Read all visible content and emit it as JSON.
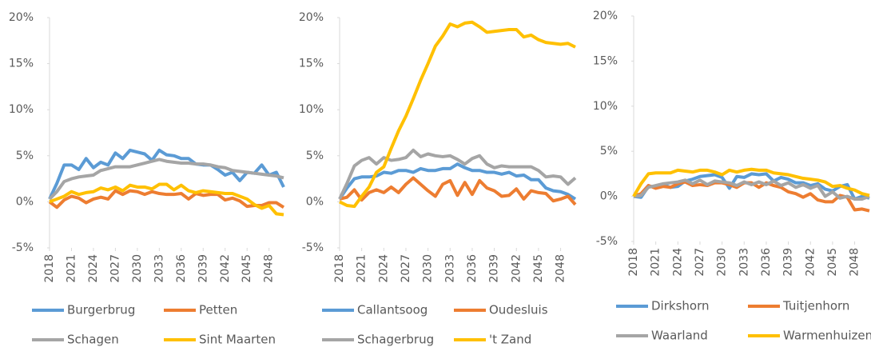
{
  "chart_data": [
    {
      "type": "line",
      "x": [
        2018,
        2019,
        2020,
        2021,
        2022,
        2023,
        2024,
        2025,
        2026,
        2027,
        2028,
        2029,
        2030,
        2031,
        2032,
        2033,
        2034,
        2035,
        2036,
        2037,
        2038,
        2039,
        2040,
        2041,
        2042,
        2043,
        2044,
        2045,
        2046,
        2047,
        2048,
        2049,
        2050
      ],
      "xlim": [
        2018,
        2050
      ],
      "xticks": [
        2018,
        2021,
        2024,
        2027,
        2030,
        2033,
        2036,
        2039,
        2042,
        2045,
        2048
      ],
      "ylim": [
        -5,
        20
      ],
      "yticks": [
        {
          "value": -5,
          "label": "-5%"
        },
        {
          "value": 0,
          "label": "0%"
        },
        {
          "value": 5,
          "label": "5%"
        },
        {
          "value": 10,
          "label": "10%"
        },
        {
          "value": 15,
          "label": "15%"
        },
        {
          "value": 20,
          "label": "20%"
        }
      ],
      "series": [
        {
          "name": "Burgerbrug",
          "color": "#5b9bd5",
          "values": [
            0.3,
            2,
            4,
            4,
            3.5,
            4.7,
            3.7,
            4.3,
            4,
            5.3,
            4.7,
            5.6,
            5.4,
            5.2,
            4.5,
            5.6,
            5.1,
            5.0,
            4.7,
            4.7,
            4.1,
            4.0,
            4.0,
            3.5,
            2.9,
            3.2,
            2.3,
            3.2,
            3.1,
            4.0,
            2.9,
            3.2,
            1.6
          ]
        },
        {
          "name": "Petten",
          "color": "#ed7d31",
          "values": [
            0,
            -0.6,
            0.2,
            0.6,
            0.4,
            -0.1,
            0.3,
            0.5,
            0.3,
            1.2,
            0.8,
            1.2,
            1.1,
            0.8,
            1.1,
            0.9,
            0.8,
            0.8,
            0.9,
            0.3,
            0.9,
            0.7,
            0.8,
            0.8,
            0.2,
            0.4,
            0.1,
            -0.5,
            -0.4,
            -0.4,
            -0.1,
            -0.1,
            -0.6
          ]
        },
        {
          "name": "Schagen",
          "color": "#a5a5a5",
          "values": [
            0.3,
            1.1,
            2.2,
            2.5,
            2.7,
            2.8,
            2.9,
            3.4,
            3.6,
            3.8,
            3.8,
            3.8,
            4.0,
            4.2,
            4.4,
            4.6,
            4.4,
            4.3,
            4.2,
            4.2,
            4.1,
            4.1,
            4.0,
            3.8,
            3.7,
            3.4,
            3.3,
            3.2,
            3.1,
            3.0,
            2.9,
            2.8,
            2.6
          ]
        },
        {
          "name": "Sint Maarten",
          "color": "#ffc000",
          "values": [
            0,
            0.3,
            0.6,
            1.1,
            0.8,
            1.0,
            1.1,
            1.5,
            1.3,
            1.6,
            1.2,
            1.8,
            1.6,
            1.6,
            1.4,
            1.9,
            1.9,
            1.3,
            1.8,
            1.2,
            1.0,
            1.2,
            1.1,
            1.0,
            0.9,
            0.9,
            0.6,
            0.3,
            -0.3,
            -0.7,
            -0.4,
            -1.3,
            -1.4
          ]
        }
      ]
    },
    {
      "type": "line",
      "x": [
        2018,
        2019,
        2020,
        2021,
        2022,
        2023,
        2024,
        2025,
        2026,
        2027,
        2028,
        2029,
        2030,
        2031,
        2032,
        2033,
        2034,
        2035,
        2036,
        2037,
        2038,
        2039,
        2040,
        2041,
        2042,
        2043,
        2044,
        2045,
        2046,
        2047,
        2048,
        2049,
        2050
      ],
      "xlim": [
        2018,
        2050
      ],
      "xticks": [
        2018,
        2021,
        2024,
        2027,
        2030,
        2033,
        2036,
        2039,
        2042,
        2045,
        2048
      ],
      "ylim": [
        -5,
        20
      ],
      "yticks": [
        {
          "value": -5,
          "label": "-5%"
        },
        {
          "value": 0,
          "label": "0%"
        },
        {
          "value": 5,
          "label": "5%"
        },
        {
          "value": 10,
          "label": "10%"
        },
        {
          "value": 15,
          "label": "15%"
        },
        {
          "value": 20,
          "label": "20%"
        }
      ],
      "series": [
        {
          "name": "Callantsoog",
          "color": "#5b9bd5",
          "values": [
            0.3,
            1.5,
            2.5,
            2.7,
            2.7,
            2.8,
            3.2,
            3.1,
            3.4,
            3.4,
            3.2,
            3.6,
            3.4,
            3.4,
            3.6,
            3.6,
            4.1,
            3.7,
            3.4,
            3.4,
            3.2,
            3.2,
            3.0,
            3.2,
            2.8,
            2.9,
            2.4,
            2.4,
            1.5,
            1.2,
            1.1,
            0.8,
            0.3
          ]
        },
        {
          "name": "Oudesluis",
          "color": "#ed7d31",
          "values": [
            0.3,
            0.5,
            1.3,
            0.2,
            1.0,
            1.3,
            1.0,
            1.6,
            1.0,
            1.9,
            2.6,
            1.9,
            1.2,
            0.6,
            1.9,
            2.3,
            0.7,
            2.1,
            0.8,
            2.3,
            1.5,
            1.2,
            0.6,
            0.7,
            1.4,
            0.3,
            1.2,
            1.0,
            0.9,
            0.1,
            0.3,
            0.6,
            -0.3
          ]
        },
        {
          "name": "Schagerbrug",
          "color": "#a5a5a5",
          "values": [
            0.3,
            2,
            3.9,
            4.5,
            4.8,
            4.1,
            4.8,
            4.5,
            4.6,
            4.8,
            5.6,
            4.9,
            5.2,
            5.0,
            4.9,
            5.0,
            4.6,
            4.1,
            4.7,
            5.0,
            4.1,
            3.7,
            3.9,
            3.8,
            3.8,
            3.8,
            3.8,
            3.4,
            2.7,
            2.8,
            2.7,
            1.9,
            2.6
          ]
        },
        {
          "name": "'t Zand",
          "color": "#ffc000",
          "values": [
            0,
            -0.4,
            -0.5,
            0.6,
            1.6,
            3.2,
            3.8,
            5.8,
            7.7,
            9.3,
            11.2,
            13.2,
            15.0,
            16.9,
            18.0,
            19.3,
            19.0,
            19.4,
            19.5,
            19.0,
            18.4,
            18.5,
            18.6,
            18.7,
            18.7,
            17.9,
            18.1,
            17.6,
            17.3,
            17.2,
            17.1,
            17.2,
            16.8
          ]
        }
      ]
    },
    {
      "type": "line",
      "x": [
        2018,
        2019,
        2020,
        2021,
        2022,
        2023,
        2024,
        2025,
        2026,
        2027,
        2028,
        2029,
        2030,
        2031,
        2032,
        2033,
        2034,
        2035,
        2036,
        2037,
        2038,
        2039,
        2040,
        2041,
        2042,
        2043,
        2044,
        2045,
        2046,
        2047,
        2048,
        2049,
        2050
      ],
      "xlim": [
        2018,
        2050
      ],
      "xticks": [
        2018,
        2021,
        2024,
        2027,
        2030,
        2033,
        2036,
        2039,
        2042,
        2045,
        2048
      ],
      "ylim": [
        -5,
        20
      ],
      "yticks": [
        {
          "value": -5,
          "label": "-5%"
        },
        {
          "value": 0,
          "label": "0%"
        },
        {
          "value": 5,
          "label": "5%"
        },
        {
          "value": 10,
          "label": "10%"
        },
        {
          "value": 15,
          "label": "15%"
        },
        {
          "value": 20,
          "label": "20%"
        }
      ],
      "series": [
        {
          "name": "Dirkshorn",
          "color": "#5b9bd5",
          "values": [
            0,
            -0.1,
            1.1,
            1.1,
            1.3,
            1.0,
            1.1,
            1.7,
            1.9,
            2.2,
            2.3,
            2.4,
            2.1,
            0.9,
            2.2,
            2.1,
            2.5,
            2.4,
            2.5,
            1.7,
            2.1,
            1.9,
            1.5,
            1.5,
            1.2,
            1.4,
            0.8,
            0.6,
            1.1,
            1.3,
            -0.3,
            0.0,
            -0.2
          ]
        },
        {
          "name": "Tuitjenhorn",
          "color": "#ed7d31",
          "values": [
            0,
            0.3,
            1.2,
            0.9,
            1.1,
            1.0,
            1.4,
            1.6,
            1.2,
            1.3,
            1.2,
            1.5,
            1.5,
            1.3,
            1.0,
            1.5,
            1.5,
            1.0,
            1.5,
            1.2,
            1.0,
            0.5,
            0.3,
            -0.1,
            0.3,
            -0.4,
            -0.6,
            -0.6,
            0.1,
            -0.1,
            -1.5,
            -1.4,
            -1.6
          ]
        },
        {
          "name": "Waarland",
          "color": "#a5a5a5",
          "values": [
            0,
            0.1,
            1.0,
            1.2,
            1.4,
            1.5,
            1.6,
            1.8,
            1.4,
            1.8,
            1.3,
            1.7,
            1.6,
            1.5,
            1.2,
            1.6,
            1.3,
            1.6,
            1.3,
            1.7,
            1.2,
            1.5,
            1.0,
            1.3,
            0.9,
            1.2,
            0.0,
            0.5,
            -0.2,
            0.0,
            -0.3,
            -0.3,
            0.0
          ]
        },
        {
          "name": "Warmenhuizen",
          "color": "#ffc000",
          "values": [
            0,
            1.4,
            2.5,
            2.6,
            2.6,
            2.6,
            2.9,
            2.8,
            2.7,
            2.9,
            2.9,
            2.7,
            2.4,
            2.9,
            2.7,
            2.9,
            3.0,
            2.9,
            2.9,
            2.6,
            2.5,
            2.4,
            2.2,
            2.0,
            1.9,
            1.8,
            1.6,
            1.1,
            1.2,
            0.9,
            0.7,
            0.3,
            0.1
          ]
        }
      ]
    }
  ]
}
